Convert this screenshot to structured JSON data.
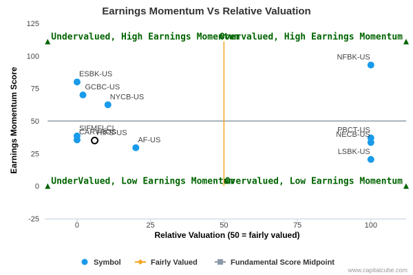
{
  "chart_data": {
    "type": "scatter",
    "title": "Earnings Momentum Vs Relative Valuation",
    "xlabel": "Relative Valuation (50 = fairly valued)",
    "ylabel": "Earnings Momentum Score",
    "xlim": [
      -11,
      112
    ],
    "ylim": [
      -25,
      125
    ],
    "x_ticks": [
      "0",
      "25",
      "50",
      "75",
      "100"
    ],
    "x_tick_values": [
      0,
      25,
      50,
      75,
      100
    ],
    "y_ticks": [
      "125",
      "100",
      "75",
      "50",
      "25",
      "0",
      "-25"
    ],
    "y_tick_values": [
      125,
      100,
      75,
      50,
      25,
      0,
      -25
    ],
    "grid": false,
    "legend_position": "bottom",
    "series": [
      {
        "name": "Symbol",
        "color": "#1a9bea",
        "points": [
          {
            "label": "ESBK-US",
            "x": 0,
            "y": 80
          },
          {
            "label": "GCBC-US",
            "x": 2,
            "y": 70
          },
          {
            "label": "NYCB-US",
            "x": 10.5,
            "y": 62.5
          },
          {
            "label": "SIFMFI-CL",
            "x": 0,
            "y": 38.5
          },
          {
            "label": "CARVROS",
            "x": 0,
            "y": 35.5
          },
          {
            "label": "HIFS-US",
            "x": 6,
            "y": 35,
            "highlight": true
          },
          {
            "label": "AF-US",
            "x": 20,
            "y": 29.5
          },
          {
            "label": "NFBK-US",
            "x": 100,
            "y": 93
          },
          {
            "label": "PBCT-US",
            "x": 100,
            "y": 37
          },
          {
            "label": "NECB-US",
            "x": 100,
            "y": 33.5
          },
          {
            "label": "LSBK-US",
            "x": 100,
            "y": 20.5
          }
        ]
      },
      {
        "name": "Fairly Valued",
        "color": "#f5a623",
        "x": 50,
        "y_range": [
          0,
          111
        ]
      },
      {
        "name": "Fundamental Score Midpoint",
        "color": "#8c9aa8",
        "y": 50,
        "x_range": [
          -10,
          112
        ]
      }
    ],
    "quadrant_labels": [
      {
        "text": "Undervalued, High Earnings Momentum",
        "x": -10,
        "y": 111
      },
      {
        "text": "Overvalued, High Earnings Momentum",
        "x": 112,
        "y": 111
      },
      {
        "text": "UnderValued, Low Earnings Momentum",
        "x": -10,
        "y": 0
      },
      {
        "text": "Overvalued, Low Earnings Momentum",
        "x": 112,
        "y": 0
      }
    ],
    "quadrant_marker_color": "#006400",
    "quadrant_text_color": "#006400"
  },
  "credit": "www.capitalcube.com"
}
